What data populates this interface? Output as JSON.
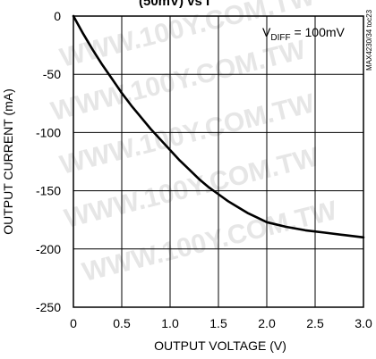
{
  "figure": {
    "top_partial_title": "(50mV) vs I",
    "side_code": "MAX4230/34 toc23",
    "annotation_main": "V",
    "annotation_sub": "DIFF",
    "annotation_rest": " = 100mV",
    "watermark_text": "WWW.100Y.COM.TW"
  },
  "chart_data": {
    "type": "line",
    "title": "",
    "xlabel": "OUTPUT VOLTAGE (V)",
    "ylabel": "OUTPUT CURRENT (mA)",
    "xlim": [
      0,
      3.0
    ],
    "ylim": [
      -250,
      0
    ],
    "x_ticks": [
      "0",
      "0.5",
      "1.0",
      "1.5",
      "2.0",
      "2.5",
      "3.0"
    ],
    "y_ticks": [
      "0",
      "-50",
      "-100",
      "-150",
      "-200",
      "-250"
    ],
    "grid": true,
    "series": [
      {
        "x": [
          0,
          0.1,
          0.2,
          0.3,
          0.4,
          0.5,
          0.6,
          0.7,
          0.8,
          0.9,
          1.0,
          1.1,
          1.2,
          1.3,
          1.4,
          1.5,
          1.6,
          1.7,
          1.8,
          1.9,
          2.0,
          2.2,
          2.4,
          2.6,
          2.8,
          3.0
        ],
        "y": [
          0,
          -15,
          -29,
          -42,
          -54,
          -66,
          -77,
          -87,
          -97,
          -106,
          -115,
          -124,
          -132,
          -140,
          -147,
          -153,
          -159,
          -164,
          -169,
          -173,
          -177,
          -181,
          -184,
          -186,
          -188,
          -190
        ]
      }
    ]
  }
}
